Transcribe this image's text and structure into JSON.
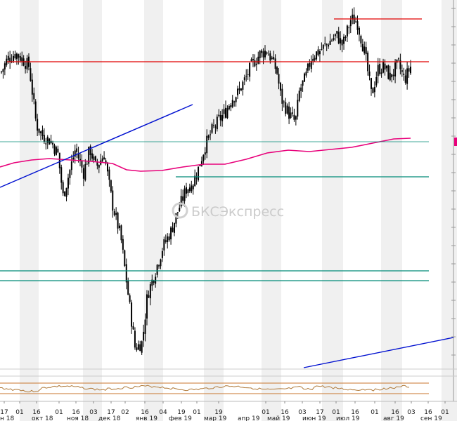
{
  "chart_data": {
    "type": "candlestick",
    "watermark": "БКСЭкспресс",
    "colors": {
      "candle": "#000000",
      "moving_average": "#e8007a",
      "resistance": "#e00000",
      "support": "#008b78",
      "trendline": "#0010d0",
      "oscillator": "#b07a3a",
      "oscillator_band": "#c8762e",
      "stripe": "#f0f0f0",
      "price_marker": "#e8007a"
    },
    "day_ticks": [
      "17",
      "01",
      "16",
      "01",
      "16",
      "03",
      "17",
      "02",
      "16",
      "04",
      "19",
      "01",
      "19",
      "01",
      "16",
      "03",
      "17",
      "01",
      "16",
      "01",
      "16",
      "03",
      "16",
      "01"
    ],
    "month_labels": [
      "н 18",
      "окт 18",
      "ноя 18",
      "дек 18",
      "янв 19",
      "фев 19",
      "мар 19",
      "апр 19",
      "май 19",
      "июн 19",
      "июл 19",
      "авг 19",
      "сен 19"
    ],
    "series": [
      {
        "type": "candlestick",
        "points_count": 240
      },
      {
        "type": "moving_average"
      },
      {
        "type": "oscillator"
      }
    ],
    "levels": [
      {
        "kind": "resistance"
      },
      {
        "kind": "resistance"
      },
      {
        "kind": "support"
      },
      {
        "kind": "support"
      },
      {
        "kind": "support"
      },
      {
        "kind": "support"
      }
    ],
    "trendlines": [
      {
        "kind": "rising"
      },
      {
        "kind": "rising"
      }
    ]
  }
}
